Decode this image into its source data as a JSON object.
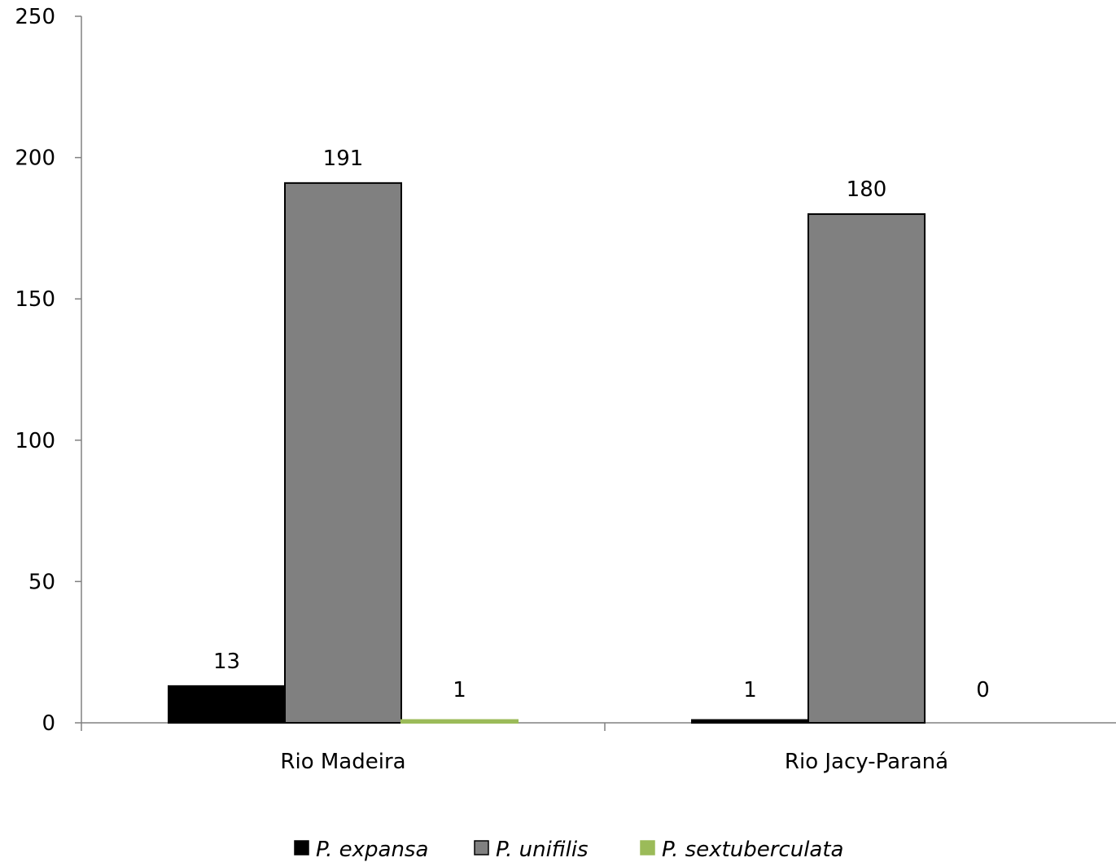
{
  "chart_data": {
    "type": "bar",
    "title": "",
    "xlabel": "",
    "ylabel": "",
    "ylim": [
      0,
      250
    ],
    "yticks": [
      0,
      50,
      100,
      150,
      200,
      250
    ],
    "grid": false,
    "legend_position": "bottom",
    "categories": [
      "Rio Madeira",
      "Rio Jacy-Paraná"
    ],
    "series": [
      {
        "name": "P. expansa",
        "color": "#000000",
        "values": [
          13,
          1
        ]
      },
      {
        "name": "P. unifilis",
        "color": "#808080",
        "values": [
          191,
          180
        ]
      },
      {
        "name": "P. sextuberculata",
        "color": "#9bbb59",
        "values": [
          1,
          0
        ]
      }
    ]
  }
}
